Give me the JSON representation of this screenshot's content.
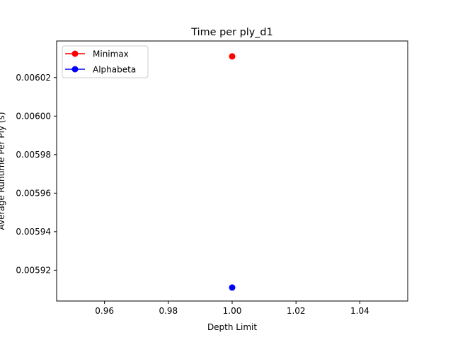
{
  "chart_data": {
    "type": "line",
    "title": "Time per ply_d1",
    "xlabel": "Depth Limit",
    "ylabel": "Average Runtime Per Ply (s)",
    "xlim": [
      0.945,
      1.055
    ],
    "ylim": [
      0.005904,
      0.006039
    ],
    "x_ticks": [
      0.96,
      0.98,
      1.0,
      1.02,
      1.04
    ],
    "x_tick_labels": [
      "0.96",
      "0.98",
      "1.00",
      "1.02",
      "1.04"
    ],
    "y_ticks": [
      0.00592,
      0.00594,
      0.00596,
      0.00598,
      0.006,
      0.00602
    ],
    "y_tick_labels": [
      "0.00592",
      "0.00594",
      "0.00596",
      "0.00598",
      "0.00600",
      "0.00602"
    ],
    "grid": false,
    "legend": "top-left",
    "series": [
      {
        "name": "Minimax",
        "color": "#ff0000",
        "marker": "circle",
        "x": [
          1.0
        ],
        "y": [
          0.006031
        ]
      },
      {
        "name": "Alphabeta",
        "color": "#0000ff",
        "marker": "circle",
        "x": [
          1.0
        ],
        "y": [
          0.005911
        ]
      }
    ]
  }
}
